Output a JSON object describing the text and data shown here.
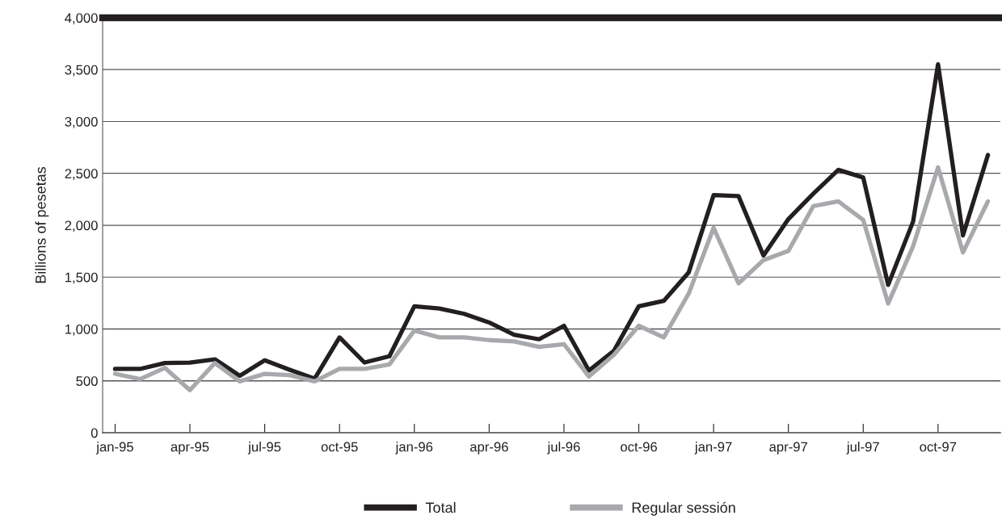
{
  "chart_data": {
    "type": "line",
    "ylabel": "Billions of pesetas",
    "categories": [
      "jan-95",
      null,
      null,
      "apr-95",
      null,
      null,
      "jul-95",
      null,
      null,
      "oct-95",
      null,
      null,
      "jan-96",
      null,
      null,
      "apr-96",
      null,
      null,
      "jul-96",
      null,
      null,
      "oct-96",
      null,
      null,
      "jan-97",
      null,
      null,
      "apr-97",
      null,
      null,
      "jul-97",
      null,
      null,
      "oct-97",
      null,
      null
    ],
    "series": [
      {
        "name": "Total",
        "color": "#231f20",
        "values": [
          615,
          615,
          672,
          676,
          708,
          549,
          698,
          607,
          521,
          919,
          677,
          737,
          1219,
          1198,
          1146,
          1063,
          945,
          901,
          1031,
          599,
          789,
          1219,
          1271,
          1544,
          2290,
          2281,
          1708,
          2060,
          2305,
          2534,
          2460,
          1425,
          2036,
          3551,
          1902,
          2677
        ]
      },
      {
        "name": "Regular sessión",
        "color": "#a7a9ac",
        "values": [
          568,
          516,
          625,
          411,
          672,
          495,
          568,
          555,
          495,
          615,
          615,
          659,
          984,
          919,
          919,
          893,
          880,
          828,
          854,
          542,
          750,
          1031,
          919,
          1340,
          1975,
          1440,
          1664,
          1753,
          2185,
          2230,
          2051,
          1246,
          1798,
          2558,
          1738,
          2230
        ]
      }
    ],
    "ylim": [
      0,
      4000
    ],
    "yticks": [
      0,
      {
        "value": 500,
        "label": "500"
      },
      {
        "value": 1000,
        "label": "1,000"
      },
      {
        "value": 1500,
        "label": "1,500"
      },
      {
        "value": 2000,
        "label": "2,000"
      },
      {
        "value": 2500,
        "label": "2,500"
      },
      {
        "value": 3000,
        "label": "3,000"
      },
      {
        "value": 3500,
        "label": "3,500"
      },
      {
        "value": 4000,
        "label": "4,000"
      }
    ],
    "grid": "y",
    "legend": "bottom",
    "marker": "none",
    "line_style": "solid"
  }
}
